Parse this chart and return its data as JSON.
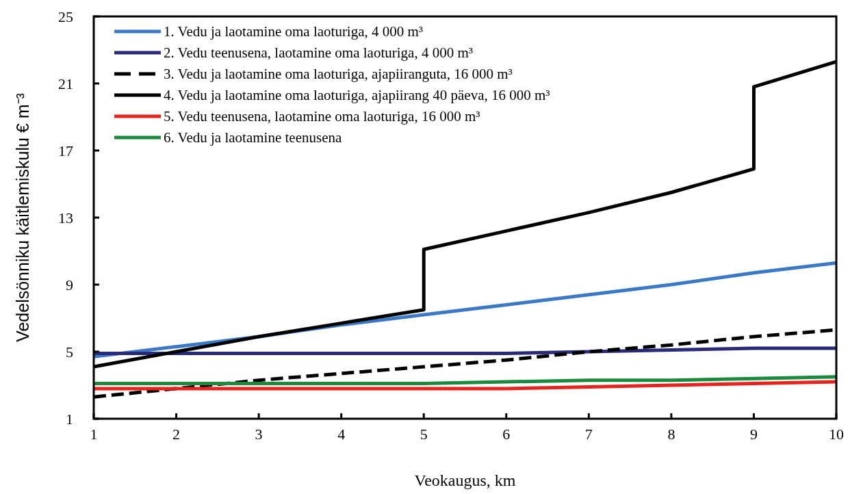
{
  "chart_data": {
    "type": "line",
    "xlabel": "Veokaugus, km",
    "ylabel": "Vedelsönniku käitlemiskulu € m⁻³",
    "xlim": [
      1,
      10
    ],
    "xticks": [
      1,
      2,
      3,
      4,
      5,
      6,
      7,
      8,
      9,
      10
    ],
    "ylim": [
      1,
      25
    ],
    "yticks": [
      1,
      5,
      9,
      13,
      17,
      21,
      25
    ],
    "grid": false,
    "legend": "top left",
    "marker": "none",
    "series": [
      {
        "name": "1. Vedu ja laotamine oma laoturiga, 4 000 m³",
        "color": "#3a78c8",
        "line_style": "solid",
        "x": [
          1,
          2,
          3,
          4,
          5,
          6,
          7,
          8,
          9,
          10
        ],
        "values": [
          4.7,
          5.3,
          5.9,
          6.6,
          7.2,
          7.8,
          8.4,
          9.0,
          9.7,
          10.3
        ]
      },
      {
        "name": "2. Vedu teenusena, laotamine oma laoturiga, 4 000 m³",
        "color": "#2b2a7a",
        "line_style": "solid",
        "x": [
          1,
          2,
          3,
          4,
          5,
          6,
          7,
          8,
          9,
          10
        ],
        "values": [
          4.9,
          4.9,
          4.9,
          4.9,
          4.9,
          4.9,
          5.0,
          5.1,
          5.2,
          5.2
        ]
      },
      {
        "name": "3. Vedu ja laotamine oma laoturiga, ajapiiranguta, 16 000 m³",
        "color": "#000000",
        "line_style": "dashed",
        "x": [
          1,
          2,
          3,
          4,
          5,
          6,
          7,
          8,
          9,
          10
        ],
        "values": [
          2.3,
          2.8,
          3.3,
          3.7,
          4.1,
          4.5,
          5.0,
          5.4,
          5.9,
          6.3
        ]
      },
      {
        "name": "4. Vedu ja laotamine oma laoturiga, ajapiirang 40 päeva, 16 000 m³",
        "color": "#000000",
        "line_style": "solid",
        "x": [
          1,
          2,
          3,
          4,
          5,
          5,
          6,
          7,
          8,
          9,
          9,
          10
        ],
        "values": [
          4.1,
          5.0,
          5.9,
          6.7,
          7.5,
          11.1,
          12.2,
          13.3,
          14.5,
          15.9,
          20.8,
          22.3
        ]
      },
      {
        "name": "5. Vedu teenusena, laotamine oma laoturiga, 16 000 m³",
        "color": "#e8221c",
        "line_style": "solid",
        "x": [
          1,
          2,
          3,
          4,
          5,
          6,
          7,
          8,
          9,
          10
        ],
        "values": [
          2.8,
          2.8,
          2.8,
          2.8,
          2.8,
          2.8,
          2.9,
          3.0,
          3.1,
          3.2
        ]
      },
      {
        "name": "6. Vedu ja laotamine teenusena",
        "color": "#1a8a3c",
        "line_style": "solid",
        "x": [
          1,
          2,
          3,
          4,
          5,
          6,
          7,
          8,
          9,
          10
        ],
        "values": [
          3.1,
          3.1,
          3.1,
          3.1,
          3.1,
          3.2,
          3.3,
          3.3,
          3.4,
          3.5
        ]
      }
    ]
  }
}
